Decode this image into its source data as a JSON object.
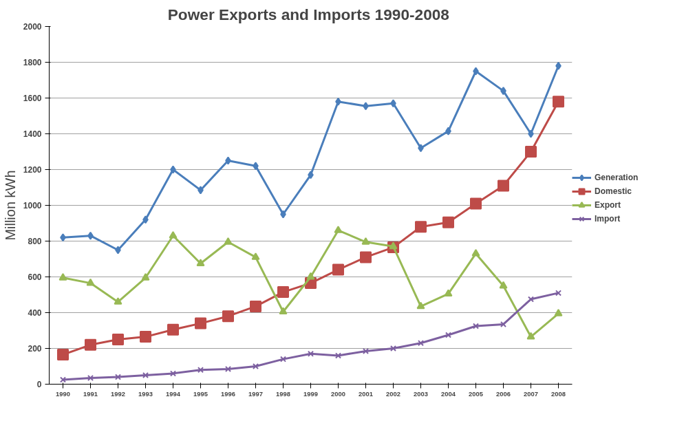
{
  "chart_data": {
    "type": "line",
    "title": "Power Exports and Imports  1990-2008",
    "ylabel": "Million kWh",
    "categories": [
      "1990",
      "1991",
      "1992",
      "1993",
      "1994",
      "1995",
      "1996",
      "1997",
      "1998",
      "1999",
      "2000",
      "2001",
      "2002",
      "2003",
      "2004",
      "2005",
      "2006",
      "2007",
      "2008"
    ],
    "series": [
      {
        "name": "Generation",
        "color": "#4a7ebb",
        "marker": "diamond",
        "values": [
          820,
          830,
          750,
          920,
          1200,
          1085,
          1250,
          1220,
          950,
          1170,
          1580,
          1555,
          1570,
          1320,
          1415,
          1750,
          1640,
          1400,
          1780
        ]
      },
      {
        "name": "Domestic",
        "color": "#be4b48",
        "marker": "square",
        "values": [
          165,
          220,
          250,
          265,
          305,
          340,
          380,
          435,
          515,
          565,
          640,
          710,
          765,
          880,
          905,
          1010,
          1110,
          1300,
          1580
        ]
      },
      {
        "name": "Export",
        "color": "#98b954",
        "marker": "triangle",
        "values": [
          595,
          565,
          460,
          595,
          830,
          675,
          795,
          710,
          405,
          600,
          860,
          795,
          770,
          435,
          505,
          730,
          550,
          265,
          395
        ]
      },
      {
        "name": "Import",
        "color": "#7d60a0",
        "marker": "cross",
        "values": [
          25,
          35,
          40,
          50,
          60,
          80,
          85,
          100,
          140,
          170,
          160,
          185,
          200,
          230,
          275,
          325,
          335,
          475,
          510
        ]
      }
    ],
    "ylim": [
      0,
      2000
    ],
    "yticks": [
      0,
      200,
      400,
      600,
      800,
      1000,
      1200,
      1400,
      1600,
      1800,
      2000
    ],
    "grid": "y",
    "legend": "right"
  }
}
